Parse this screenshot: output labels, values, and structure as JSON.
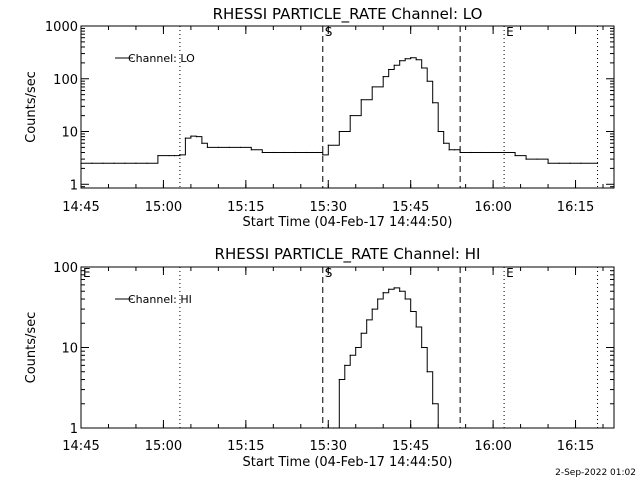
{
  "footer": {
    "timestamp": "2-Sep-2022 01:02"
  },
  "chart_data": [
    {
      "type": "line",
      "title": "RHESSI PARTICLE_RATE Channel: LO",
      "xlabel": "Start Time (04-Feb-17 14:44:50)",
      "ylabel": "Counts/sec",
      "yscale": "log",
      "ylim": [
        0.85,
        1000
      ],
      "xlim": [
        "14:45",
        "16:22"
      ],
      "x_ticks": [
        "14:45",
        "15:00",
        "15:15",
        "15:30",
        "15:45",
        "16:00",
        "16:15"
      ],
      "y_ticks": [
        "1",
        "10",
        "100",
        "1000"
      ],
      "legend": {
        "entries": [
          "Channel: LO"
        ],
        "placement": "top-left"
      },
      "markers": [
        {
          "time": "15:03",
          "style": "dotted",
          "label": ""
        },
        {
          "time": "15:29",
          "style": "dashed",
          "label": "S"
        },
        {
          "time": "15:54",
          "style": "dashed",
          "label": ""
        },
        {
          "time": "16:02",
          "style": "dotted",
          "label": "E"
        },
        {
          "time": "16:19",
          "style": "dotted",
          "label": ""
        }
      ],
      "series": [
        {
          "name": "Channel: LO",
          "x": [
            "14:45",
            "14:47",
            "14:49",
            "14:51",
            "14:53",
            "14:55",
            "14:57",
            "14:59",
            "15:01",
            "15:02",
            "15:03",
            "15:04",
            "15:05",
            "15:06",
            "15:07",
            "15:08",
            "15:10",
            "15:12",
            "15:14",
            "15:16",
            "15:18",
            "15:20",
            "15:22",
            "15:24",
            "15:26",
            "15:28",
            "15:29",
            "15:30",
            "15:32",
            "15:34",
            "15:36",
            "15:38",
            "15:40",
            "15:41",
            "15:42",
            "15:43",
            "15:44",
            "15:45",
            "15:46",
            "15:47",
            "15:48",
            "15:49",
            "15:50",
            "15:51",
            "15:52",
            "15:53",
            "15:54",
            "15:56",
            "15:58",
            "16:00",
            "16:02",
            "16:04",
            "16:06",
            "16:08",
            "16:10",
            "16:12",
            "16:14",
            "16:16",
            "16:19"
          ],
          "values": [
            2.5,
            2.5,
            2.5,
            2.5,
            2.5,
            2.5,
            2.5,
            3.5,
            3.5,
            3.5,
            3.6,
            7.5,
            8.2,
            8.0,
            6.0,
            5.0,
            5.0,
            5.0,
            5.0,
            4.5,
            4.0,
            4.0,
            4.0,
            4.0,
            4.0,
            4.0,
            3.6,
            5.5,
            10,
            20,
            40,
            70,
            110,
            150,
            180,
            220,
            240,
            250,
            230,
            160,
            90,
            35,
            10,
            6,
            4.5,
            4.5,
            4.0,
            4.0,
            4.0,
            4.0,
            4.0,
            3.5,
            3.0,
            3.0,
            2.5,
            2.5,
            2.5,
            2.5,
            2.5
          ]
        }
      ]
    },
    {
      "type": "line",
      "title": "RHESSI PARTICLE_RATE Channel: HI",
      "xlabel": "Start Time (04-Feb-17 14:44:50)",
      "ylabel": "Counts/sec",
      "yscale": "log",
      "ylim": [
        1,
        100
      ],
      "xlim": [
        "14:45",
        "16:22"
      ],
      "x_ticks": [
        "14:45",
        "15:00",
        "15:15",
        "15:30",
        "15:45",
        "16:00",
        "16:15"
      ],
      "y_ticks": [
        "1",
        "10",
        "100"
      ],
      "legend": {
        "entries": [
          "Channel: HI"
        ],
        "placement": "top-left"
      },
      "markers": [
        {
          "time": "14:45",
          "style": "none",
          "label": "E"
        },
        {
          "time": "15:03",
          "style": "dotted",
          "label": ""
        },
        {
          "time": "15:29",
          "style": "dashed",
          "label": "S"
        },
        {
          "time": "15:54",
          "style": "dashed",
          "label": ""
        },
        {
          "time": "16:02",
          "style": "dotted",
          "label": "E"
        },
        {
          "time": "16:19",
          "style": "dotted",
          "label": ""
        }
      ],
      "series": [
        {
          "name": "Channel: HI",
          "x": [
            "15:31",
            "15:32",
            "15:33",
            "15:34",
            "15:35",
            "15:36",
            "15:37",
            "15:38",
            "15:39",
            "15:40",
            "15:41",
            "15:42",
            "15:43",
            "15:44",
            "15:45",
            "15:46",
            "15:47",
            "15:48",
            "15:49",
            "15:50"
          ],
          "values": [
            1,
            4,
            6,
            8,
            10,
            15,
            22,
            30,
            40,
            48,
            53,
            55,
            50,
            40,
            28,
            18,
            10,
            5,
            2,
            1
          ]
        }
      ]
    }
  ]
}
